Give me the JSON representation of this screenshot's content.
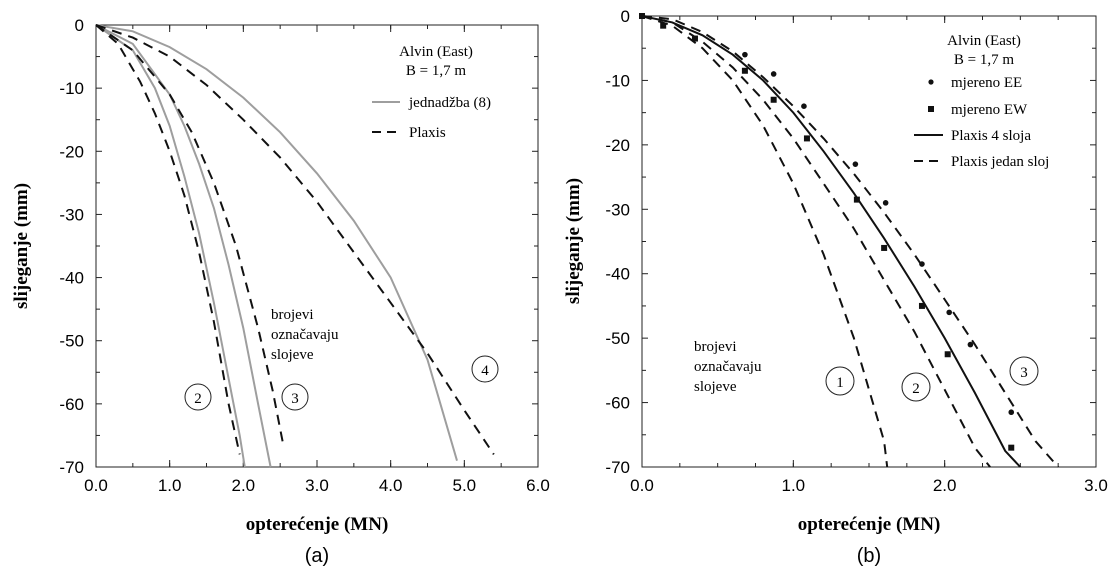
{
  "colors": {
    "equation": "#9e9e9e",
    "plaxis": "#111111",
    "plaxis4": "#111111",
    "axis": "#222222"
  },
  "chart_data": [
    {
      "type": "line",
      "caption": "(a)",
      "xlabel": "opterećenje (MN)",
      "ylabel": "slijeganje (mm)",
      "xlim": [
        0,
        6
      ],
      "ylim": [
        -70,
        0
      ],
      "xticks": [
        "0.0",
        "1.0",
        "2.0",
        "3.0",
        "4.0",
        "5.0",
        "6.0"
      ],
      "yticks": [
        "0",
        "-10",
        "-20",
        "-30",
        "-40",
        "-50",
        "-60",
        "-70"
      ],
      "legend": {
        "title1": "Alvin (East)",
        "title2": "B = 1,7 m",
        "entries": [
          {
            "label": "jednadžba (8)",
            "style": "solid-gray"
          },
          {
            "label": "Plaxis",
            "style": "dashed"
          }
        ]
      },
      "annotations": {
        "note": [
          "brojevi",
          "označavaju",
          "slojeve"
        ],
        "circles": [
          "2",
          "3",
          "4"
        ]
      },
      "series": [
        {
          "style": "solid-gray",
          "x": [
            0,
            0.5,
            0.8,
            1.0,
            1.2,
            1.4,
            1.6,
            1.8,
            1.95,
            2.02
          ],
          "y": [
            0,
            -4,
            -10,
            -16,
            -24,
            -33,
            -44,
            -56,
            -65,
            -70
          ]
        },
        {
          "style": "solid-gray",
          "x": [
            0,
            0.5,
            1.0,
            1.2,
            1.4,
            1.6,
            1.8,
            2.0,
            2.2,
            2.37
          ],
          "y": [
            0,
            -3,
            -11,
            -16,
            -22,
            -29,
            -38,
            -48,
            -60,
            -70
          ]
        },
        {
          "style": "solid-gray",
          "x": [
            0,
            0.5,
            1.0,
            1.5,
            2.0,
            2.5,
            3.0,
            3.5,
            4.0,
            4.5,
            4.9
          ],
          "y": [
            0,
            -1,
            -3.5,
            -7,
            -11.5,
            -17,
            -23.5,
            -31,
            -40,
            -53,
            -69
          ]
        },
        {
          "style": "dashed",
          "x": [
            0,
            0.3,
            0.6,
            0.8,
            1.0,
            1.2,
            1.4,
            1.6,
            1.8,
            1.95
          ],
          "y": [
            0,
            -3,
            -9,
            -14,
            -20,
            -27,
            -36,
            -47,
            -60,
            -68
          ]
        },
        {
          "style": "dashed",
          "x": [
            0,
            0.5,
            1.0,
            1.3,
            1.6,
            1.9,
            2.2,
            2.4,
            2.55
          ],
          "y": [
            0,
            -4,
            -11,
            -17,
            -25,
            -35,
            -48,
            -58,
            -67
          ]
        },
        {
          "style": "dashed",
          "x": [
            0,
            0.5,
            1.0,
            1.5,
            2.0,
            2.5,
            3.0,
            3.5,
            4.0,
            4.5,
            5.0,
            5.4
          ],
          "y": [
            0,
            -2,
            -5,
            -9.5,
            -15,
            -21,
            -28,
            -36,
            -44,
            -52,
            -61,
            -68
          ]
        }
      ]
    },
    {
      "type": "line",
      "caption": "(b)",
      "xlabel": "opterećenje (MN)",
      "ylabel": "slijeganje (mm)",
      "xlim": [
        0,
        3
      ],
      "ylim": [
        -70,
        0
      ],
      "xticks": [
        "0.0",
        "1.0",
        "2.0",
        "3.0"
      ],
      "yticks": [
        "0",
        "-10",
        "-20",
        "-30",
        "-40",
        "-50",
        "-60",
        "-70"
      ],
      "legend": {
        "title1": "Alvin (East)",
        "title2": "B = 1,7 m",
        "entries": [
          {
            "label": "mjereno EE",
            "style": "dot"
          },
          {
            "label": "mjereno EW",
            "style": "square"
          },
          {
            "label": "Plaxis 4 sloja",
            "style": "solid"
          },
          {
            "label": "Plaxis jedan sloj",
            "style": "dashed"
          }
        ]
      },
      "annotations": {
        "note": [
          "brojevi",
          "označavaju",
          "slojeve"
        ],
        "circles": [
          "1",
          "2",
          "3"
        ]
      },
      "measured_EE": {
        "x": [
          0.68,
          0.87,
          1.07,
          1.41,
          1.61,
          1.85,
          2.03,
          2.17,
          2.44
        ],
        "y": [
          -6,
          -9,
          -14,
          -23,
          -29,
          -38.5,
          -46,
          -51,
          -61.5
        ]
      },
      "measured_EW": {
        "x": [
          0.0,
          0.14,
          0.35,
          0.68,
          0.87,
          1.09,
          1.42,
          1.6,
          1.85,
          2.02,
          2.44
        ],
        "y": [
          0,
          -1.5,
          -3.5,
          -8.5,
          -13,
          -19,
          -28.5,
          -36,
          -45,
          -52.5,
          -67
        ]
      },
      "series": [
        {
          "style": "solid",
          "x": [
            0,
            0.2,
            0.4,
            0.6,
            0.8,
            1.0,
            1.2,
            1.4,
            1.6,
            1.8,
            2.0,
            2.2,
            2.4,
            2.5
          ],
          "y": [
            0,
            -1,
            -3,
            -6,
            -10,
            -15,
            -21,
            -27.5,
            -34.5,
            -42,
            -50,
            -58.5,
            -67.5,
            -71
          ]
        },
        {
          "style": "dashed",
          "x": [
            0,
            0.2,
            0.4,
            0.6,
            0.8,
            1.0,
            1.2,
            1.4,
            1.6,
            1.62
          ],
          "y": [
            0,
            -1.5,
            -5,
            -10,
            -17,
            -26,
            -37,
            -50,
            -66,
            -70
          ]
        },
        {
          "style": "dashed",
          "x": [
            0,
            0.2,
            0.4,
            0.6,
            0.8,
            1.0,
            1.2,
            1.4,
            1.6,
            1.8,
            2.0,
            2.2,
            2.3
          ],
          "y": [
            0,
            -1,
            -4,
            -8,
            -13,
            -19,
            -26,
            -33,
            -41,
            -49,
            -58,
            -67,
            -71
          ]
        },
        {
          "style": "dashed",
          "x": [
            0,
            0.2,
            0.4,
            0.6,
            0.8,
            1.0,
            1.2,
            1.4,
            1.6,
            1.8,
            2.0,
            2.2,
            2.4,
            2.6,
            2.75
          ],
          "y": [
            0,
            -0.5,
            -2.5,
            -5.5,
            -9.5,
            -14,
            -19,
            -24.5,
            -30.5,
            -37,
            -44,
            -51,
            -58.5,
            -66,
            -71
          ]
        }
      ]
    }
  ]
}
